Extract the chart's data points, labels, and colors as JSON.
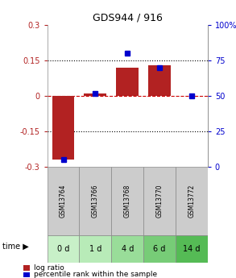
{
  "title": "GDS944 / 916",
  "samples": [
    "GSM13764",
    "GSM13766",
    "GSM13768",
    "GSM13770",
    "GSM13772"
  ],
  "time_labels": [
    "0 d",
    "1 d",
    "4 d",
    "6 d",
    "14 d"
  ],
  "log_ratio": [
    -0.27,
    0.01,
    0.12,
    0.13,
    0.0
  ],
  "percentile_rank": [
    5,
    52,
    80,
    70,
    50
  ],
  "ylim_left": [
    -0.3,
    0.3
  ],
  "ylim_right": [
    0,
    100
  ],
  "yticks_left": [
    -0.3,
    -0.15,
    0,
    0.15,
    0.3
  ],
  "yticks_right": [
    0,
    25,
    50,
    75,
    100
  ],
  "ytick_labels_left": [
    "-0.3",
    "-0.15",
    "0",
    "0.15",
    "0.3"
  ],
  "ytick_labels_right": [
    "0",
    "25",
    "50",
    "75",
    "100%"
  ],
  "bar_color": "#B22222",
  "marker_color": "#0000CD",
  "dotted_color": "#000000",
  "dashed_line_color": "#CC0000",
  "sample_bg_color": "#CCCCCC",
  "time_colors": [
    "#C8F0C8",
    "#B8EBB8",
    "#99DD99",
    "#77CC77",
    "#55BB55"
  ],
  "legend_log_ratio": "log ratio",
  "legend_percentile": "percentile rank within the sample",
  "time_arrow_label": "time",
  "fig_bg": "#FFFFFF"
}
